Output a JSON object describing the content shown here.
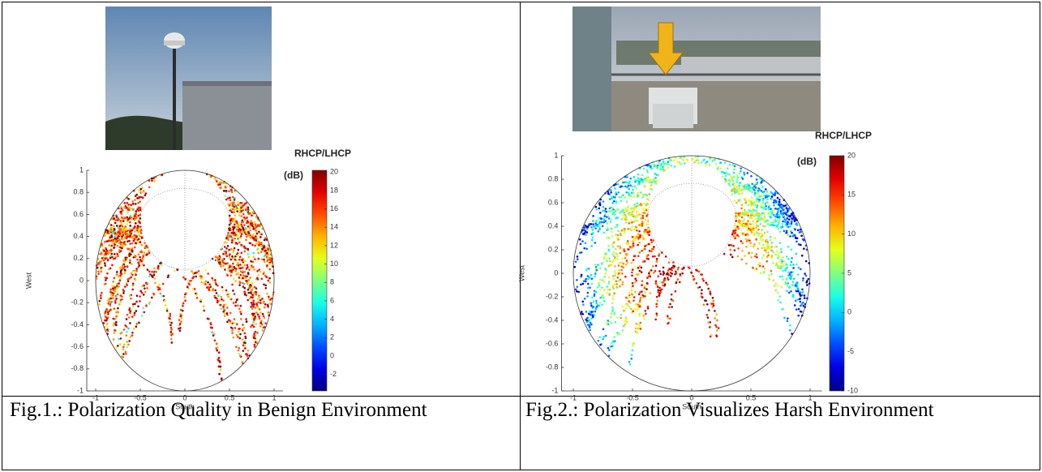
{
  "figures": [
    {
      "plot": {
        "xlabel": "South",
        "ylabel": "West",
        "xticks": [
          -1,
          -0.5,
          0,
          0.5,
          1
        ],
        "xlim": [
          -1.1,
          1.1
        ],
        "yticks": [
          1,
          0.8,
          0.6,
          0.4,
          0.2,
          0,
          -0.2,
          -0.4,
          -0.6,
          -0.8,
          -1
        ],
        "ylim": [
          -1,
          1
        ],
        "colorbar": {
          "title": "RHCP/LHCP",
          "unit": "(dB)",
          "ticks": [
            20,
            18,
            16,
            14,
            12,
            10,
            8,
            6,
            4,
            2,
            0,
            -2
          ],
          "clim": [
            -3.8,
            20.2
          ]
        }
      },
      "caption": "Fig.1.: Polarization Quality in Benign Environment"
    },
    {
      "plot": {
        "xlabel": "South",
        "ylabel": "West",
        "xticks": [
          -1,
          -0.5,
          0,
          0.5,
          1
        ],
        "xlim": [
          -1.1,
          1.1
        ],
        "yticks": [
          1,
          0.8,
          0.6,
          0.4,
          0.2,
          0,
          -0.2,
          -0.4,
          -0.6,
          -0.8,
          -1
        ],
        "ylim": [
          -1,
          1
        ],
        "colorbar": {
          "title": "RHCP/LHCP",
          "unit": "(dB)",
          "ticks": [
            20,
            15,
            10,
            5,
            0,
            -5,
            -10
          ],
          "clim": [
            -10,
            20
          ]
        }
      },
      "caption": "Fig.2.: Polarization Visualizes Harsh Environment"
    }
  ]
}
